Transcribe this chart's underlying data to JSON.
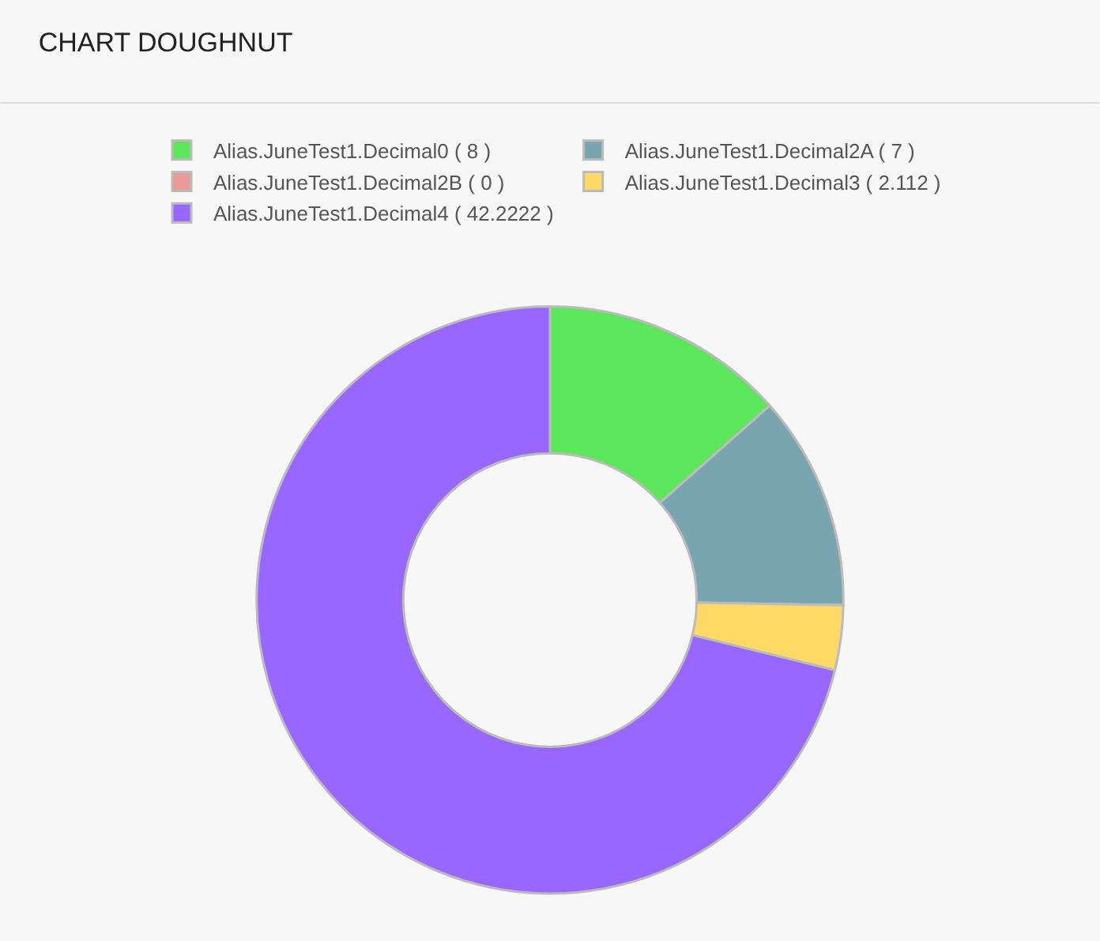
{
  "chart_data": {
    "type": "donut",
    "title": "CHART DOUGHNUT",
    "categories": [
      "Alias.JuneTest1.Decimal0 ( 8 )",
      "Alias.JuneTest1.Decimal2A ( 7 )",
      "Alias.JuneTest1.Decimal2B ( 0 )",
      "Alias.JuneTest1.Decimal3 ( 2.112 )",
      "Alias.JuneTest1.Decimal4 ( 42.2222 )"
    ],
    "values": [
      8,
      7,
      0,
      2.112,
      42.2222
    ],
    "colors": [
      "#5ce65c",
      "#78a5b0",
      "#eb9a9a",
      "#ffd966",
      "#9966ff"
    ],
    "legend": "top"
  }
}
